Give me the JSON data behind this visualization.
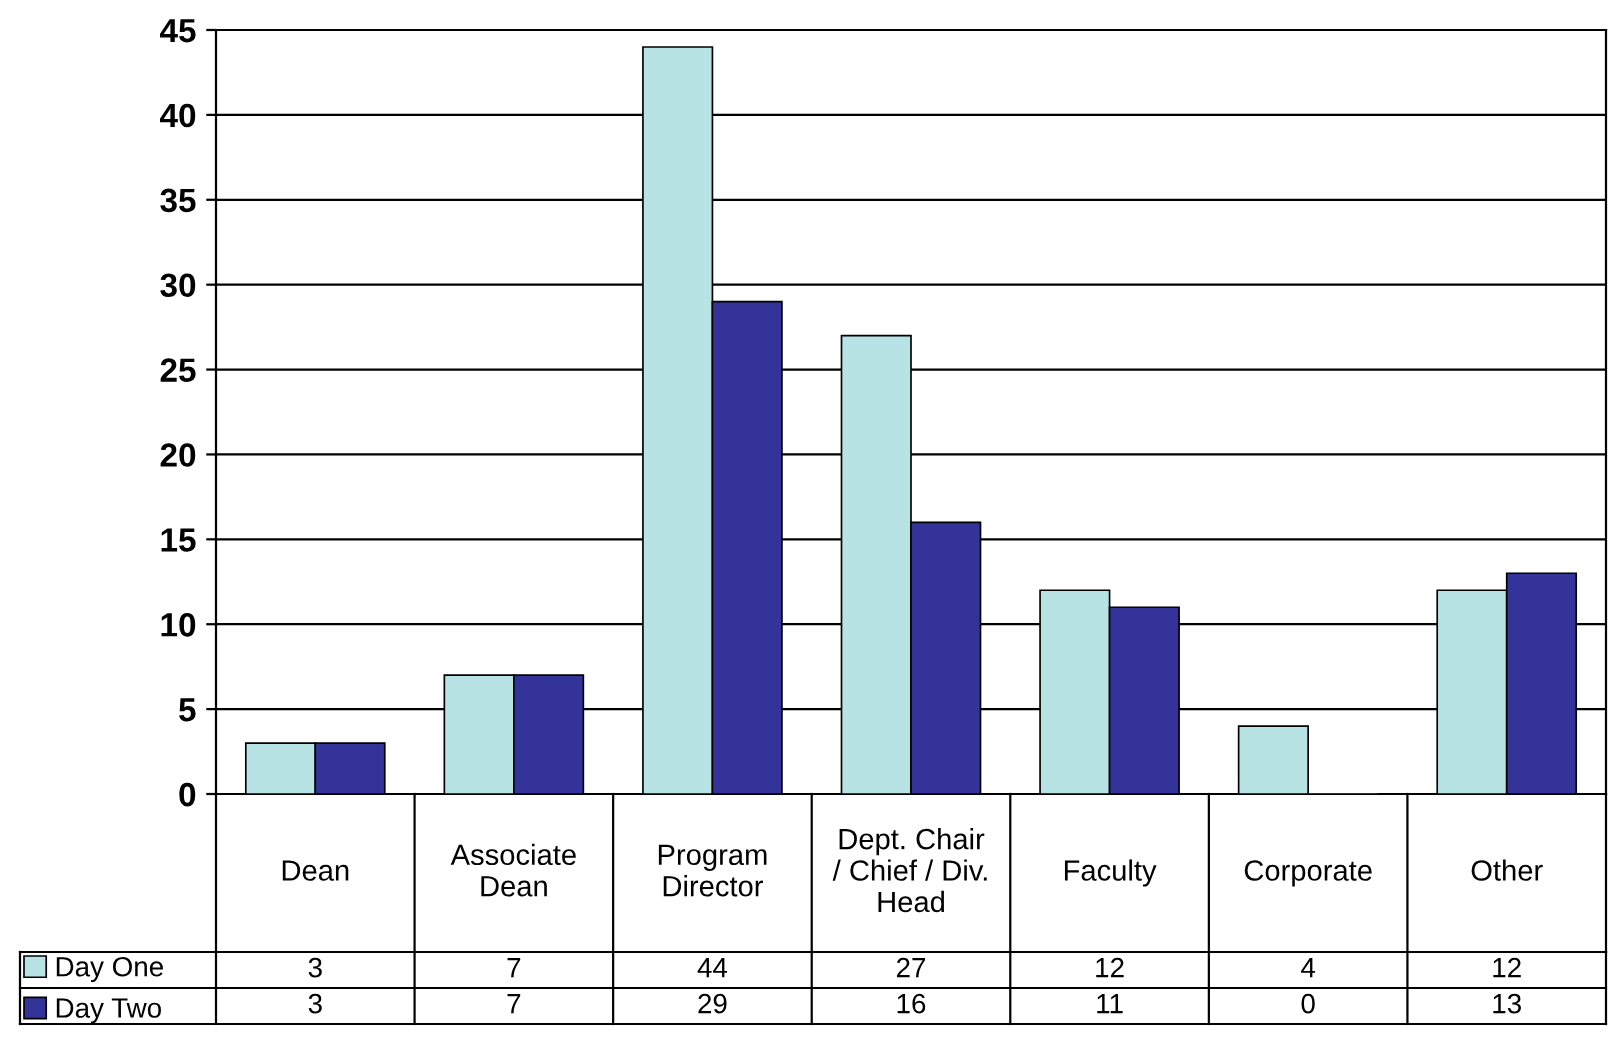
{
  "chart_data": {
    "type": "bar",
    "categories": [
      "Dean",
      "Associate\nDean",
      "Program\nDirector",
      "Dept. Chair\n/ Chief / Div.\nHead",
      "Faculty",
      "Corporate",
      "Other"
    ],
    "series": [
      {
        "name": "Day One",
        "color": "#b7e3e4",
        "values": [
          3,
          7,
          44,
          27,
          12,
          4,
          12
        ]
      },
      {
        "name": "Day Two",
        "color": "#333399",
        "values": [
          3,
          7,
          29,
          16,
          11,
          0,
          13
        ]
      }
    ],
    "ylim": [
      0,
      45
    ],
    "yticks": [
      0,
      5,
      10,
      15,
      20,
      25,
      30,
      35,
      40,
      45
    ],
    "grid": "y",
    "legend": "bottom left",
    "data_labels": true
  }
}
